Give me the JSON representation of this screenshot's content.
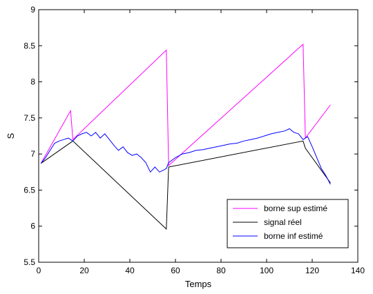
{
  "chart_data": {
    "type": "line",
    "title": "",
    "xlabel": "Temps",
    "ylabel": "S",
    "xlim": [
      0,
      140
    ],
    "ylim": [
      5.5,
      9
    ],
    "xticks": [
      0,
      20,
      40,
      60,
      80,
      100,
      120,
      140
    ],
    "yticks": [
      5.5,
      6,
      6.5,
      7,
      7.5,
      8,
      8.5,
      9
    ],
    "xtick_labels": [
      "0",
      "20",
      "40",
      "60",
      "80",
      "100",
      "120",
      "140"
    ],
    "ytick_labels": [
      "5.5",
      "6",
      "6.5",
      "7",
      "7.5",
      "8",
      "8.5",
      "9"
    ],
    "grid": false,
    "legend_position": "bottom-right",
    "series": [
      {
        "name": "borne sup estimé",
        "color": "#ff00ff",
        "x": [
          1,
          14,
          15,
          56,
          57,
          110,
          111,
          116,
          117,
          128
        ],
        "y": [
          6.87,
          7.6,
          7.2,
          8.44,
          6.84,
          8.35,
          8.38,
          8.52,
          7.22,
          7.68
        ]
      },
      {
        "name": "signal réel",
        "color": "#000000",
        "x": [
          1,
          15,
          56,
          57,
          116,
          117,
          128
        ],
        "y": [
          6.87,
          7.18,
          5.96,
          6.82,
          7.18,
          7.08,
          6.6
        ]
      },
      {
        "name": "borne inf estimé",
        "color": "#0000ff",
        "x": [
          1,
          3,
          5,
          7,
          9,
          11,
          13,
          15,
          17,
          19,
          21,
          23,
          25,
          27,
          29,
          31,
          33,
          35,
          37,
          39,
          41,
          43,
          45,
          47,
          49,
          51,
          53,
          55,
          56,
          57,
          60,
          63,
          66,
          69,
          72,
          75,
          78,
          81,
          84,
          87,
          90,
          93,
          96,
          99,
          102,
          105,
          108,
          110,
          112,
          114,
          116,
          117,
          118,
          120,
          122,
          124,
          126,
          128
        ],
        "y": [
          6.87,
          6.95,
          7.05,
          7.15,
          7.18,
          7.2,
          7.22,
          7.18,
          7.25,
          7.28,
          7.3,
          7.25,
          7.3,
          7.22,
          7.28,
          7.2,
          7.12,
          7.05,
          7.1,
          7.02,
          6.98,
          7.0,
          6.95,
          6.88,
          6.75,
          6.82,
          6.75,
          6.78,
          6.8,
          6.88,
          6.95,
          7.0,
          7.02,
          7.05,
          7.06,
          7.08,
          7.1,
          7.12,
          7.14,
          7.15,
          7.18,
          7.2,
          7.22,
          7.25,
          7.28,
          7.3,
          7.32,
          7.35,
          7.3,
          7.28,
          7.2,
          7.22,
          7.24,
          7.1,
          6.95,
          6.8,
          6.7,
          6.58
        ]
      }
    ]
  }
}
